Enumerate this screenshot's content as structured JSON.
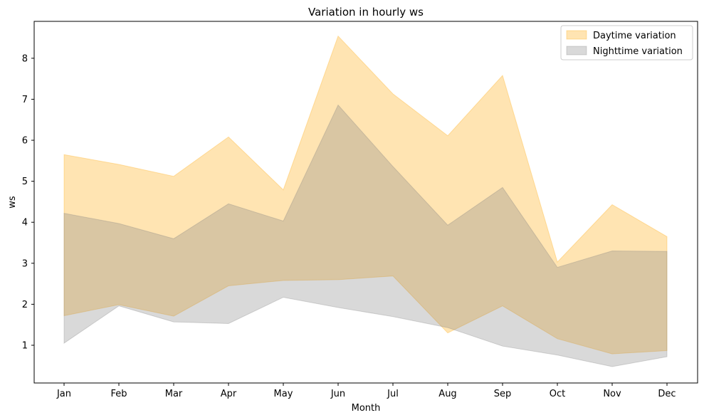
{
  "chart_data": {
    "type": "area",
    "title": "Variation in hourly ws",
    "xlabel": "Month",
    "ylabel": "ws",
    "categories": [
      "Jan",
      "Feb",
      "Mar",
      "Apr",
      "May",
      "Jun",
      "Jul",
      "Aug",
      "Sep",
      "Oct",
      "Nov",
      "Dec"
    ],
    "ylim": [
      0.08,
      8.9
    ],
    "yticks": [
      1,
      2,
      3,
      4,
      5,
      6,
      7,
      8
    ],
    "grid": false,
    "legend_position": "top-right",
    "series": [
      {
        "name": "Daytime variation",
        "color": "#ffa500",
        "opacity": 0.3,
        "upper": [
          5.65,
          5.41,
          5.12,
          6.08,
          4.79,
          8.54,
          7.13,
          6.11,
          7.58,
          3.03,
          4.43,
          3.65
        ],
        "lower": [
          1.72,
          1.99,
          1.71,
          2.45,
          2.58,
          2.6,
          2.69,
          1.3,
          1.96,
          1.16,
          0.79,
          0.87
        ]
      },
      {
        "name": "Nighttime variation",
        "color": "#808080",
        "opacity": 0.3,
        "upper": [
          4.22,
          3.97,
          3.6,
          4.45,
          4.03,
          6.86,
          5.36,
          3.93,
          4.85,
          2.9,
          3.3,
          3.29
        ],
        "lower": [
          1.05,
          1.96,
          1.57,
          1.53,
          2.17,
          1.92,
          1.7,
          1.43,
          0.98,
          0.76,
          0.48,
          0.72
        ]
      }
    ]
  }
}
